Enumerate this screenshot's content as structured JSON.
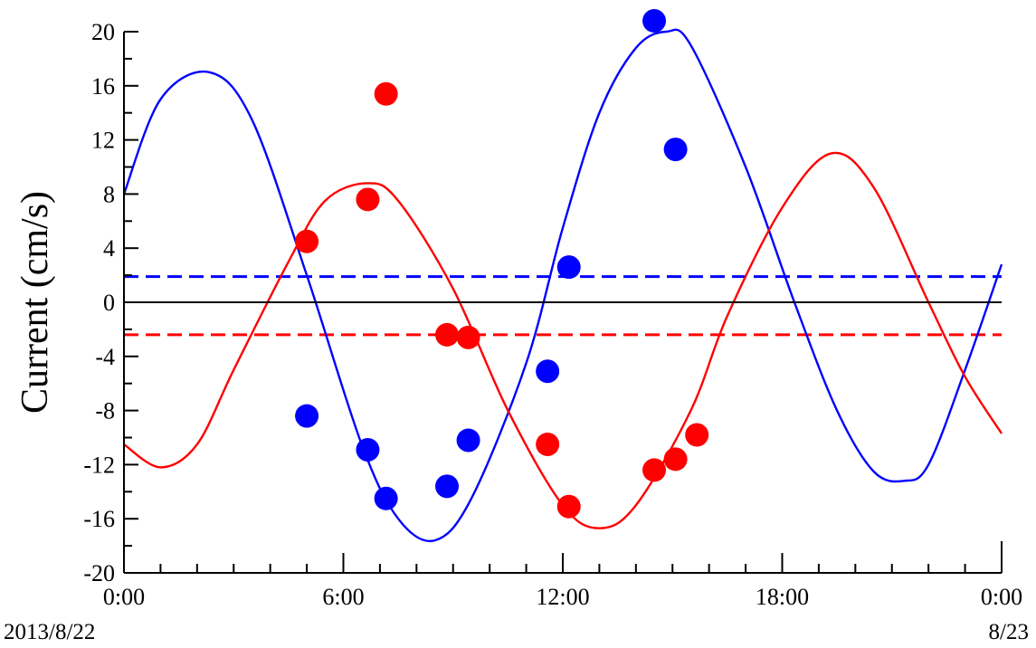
{
  "chart_data": {
    "type": "scatter",
    "title": "",
    "xlabel": "",
    "ylabel": "Current (cm/s)",
    "xlim": [
      "2013/8/22 0:00",
      "2013/8/23 0:00"
    ],
    "ylim": [
      -20,
      20
    ],
    "x_ticks": [
      "0:00",
      "6:00",
      "12:00",
      "18:00",
      "0:00"
    ],
    "x_date_labels": [
      "2013/8/22",
      "8/23"
    ],
    "y_ticks": [
      "20",
      "16",
      "12",
      "8",
      "4",
      "0",
      "-4",
      "-8",
      "-12",
      "-16",
      "-20"
    ],
    "grid": false,
    "zero_line": 0,
    "series": [
      {
        "kind": "points",
        "color": "#0000ff",
        "points": [
          [
            "2013/8/22 5:00",
            -8.4
          ],
          [
            "2013/8/22 6:40",
            -10.9
          ],
          [
            "2013/8/22 7:10",
            -14.5
          ],
          [
            "2013/8/22 8:50",
            -13.6
          ],
          [
            "2013/8/22 9:25",
            -10.2
          ],
          [
            "2013/8/22 11:35",
            -5.1
          ],
          [
            "2013/8/22 12:10",
            2.6
          ],
          [
            "2013/8/22 14:30",
            20.8
          ],
          [
            "2013/8/22 15:05",
            11.3
          ]
        ]
      },
      {
        "kind": "points",
        "color": "#ff0000",
        "points": [
          [
            "2013/8/22 5:00",
            4.5
          ],
          [
            "2013/8/22 6:40",
            7.6
          ],
          [
            "2013/8/22 7:10",
            15.4
          ],
          [
            "2013/8/22 8:50",
            -2.4
          ],
          [
            "2013/8/22 9:25",
            -2.6
          ],
          [
            "2013/8/22 11:35",
            -10.5
          ],
          [
            "2013/8/22 12:10",
            -15.1
          ],
          [
            "2013/8/22 14:30",
            -12.4
          ],
          [
            "2013/8/22 15:05",
            -11.6
          ],
          [
            "2013/8/22 15:40",
            -9.8
          ]
        ]
      },
      {
        "kind": "curve",
        "color": "#0000ff",
        "points": [
          [
            "2013/8/22 0:00",
            8.0
          ],
          [
            "2013/8/22 1:00",
            15.0
          ],
          [
            "2013/8/22 2:20",
            17.0
          ],
          [
            "2013/8/22 3:30",
            13.5
          ],
          [
            "2013/8/22 5:00",
            2.0
          ],
          [
            "2013/8/22 6:30",
            -10.5
          ],
          [
            "2013/8/22 7:30",
            -16.0
          ],
          [
            "2013/8/22 8:30",
            -17.6
          ],
          [
            "2013/8/22 9:30",
            -14.5
          ],
          [
            "2013/8/22 11:00",
            -4.5
          ],
          [
            "2013/8/22 12:00",
            5.5
          ],
          [
            "2013/8/22 13:00",
            14.0
          ],
          [
            "2013/8/22 14:00",
            18.8
          ],
          [
            "2013/8/22 14:50",
            20.0
          ],
          [
            "2013/8/22 15:30",
            19.0
          ],
          [
            "2013/8/22 17:00",
            10.0
          ],
          [
            "2013/8/22 18:20",
            0.0
          ],
          [
            "2013/8/22 19:30",
            -8.0
          ],
          [
            "2013/8/22 20:30",
            -12.5
          ],
          [
            "2013/8/22 21:20",
            -13.2
          ],
          [
            "2013/8/22 22:00",
            -12.0
          ],
          [
            "2013/8/22 23:00",
            -5.0
          ],
          [
            "2013/8/23 0:00",
            2.8
          ]
        ]
      },
      {
        "kind": "curve",
        "color": "#ff0000",
        "points": [
          [
            "2013/8/22 0:00",
            -10.5
          ],
          [
            "2013/8/22 1:00",
            -12.2
          ],
          [
            "2013/8/22 2:00",
            -10.5
          ],
          [
            "2013/8/22 3:00",
            -5.0
          ],
          [
            "2013/8/22 4:30",
            3.0
          ],
          [
            "2013/8/22 5:30",
            7.5
          ],
          [
            "2013/8/22 6:40",
            8.8
          ],
          [
            "2013/8/22 7:30",
            7.5
          ],
          [
            "2013/8/22 9:00",
            1.0
          ],
          [
            "2013/8/22 10:30",
            -8.0
          ],
          [
            "2013/8/22 12:00",
            -15.0
          ],
          [
            "2013/8/22 13:00",
            -16.7
          ],
          [
            "2013/8/22 14:00",
            -15.0
          ],
          [
            "2013/8/22 15:30",
            -8.0
          ],
          [
            "2013/8/22 16:30",
            -1.0
          ],
          [
            "2013/8/22 18:00",
            7.0
          ],
          [
            "2013/8/22 19:20",
            11.0
          ],
          [
            "2013/8/22 20:30",
            8.5
          ],
          [
            "2013/8/22 22:00",
            0.0
          ],
          [
            "2013/8/22 23:00",
            -5.5
          ],
          [
            "2013/8/23 0:00",
            -9.7
          ]
        ]
      },
      {
        "kind": "mean",
        "color": "#0000ff",
        "dashed": true,
        "y": 1.9
      },
      {
        "kind": "mean",
        "color": "#ff0000",
        "dashed": true,
        "y": -2.4
      }
    ]
  }
}
